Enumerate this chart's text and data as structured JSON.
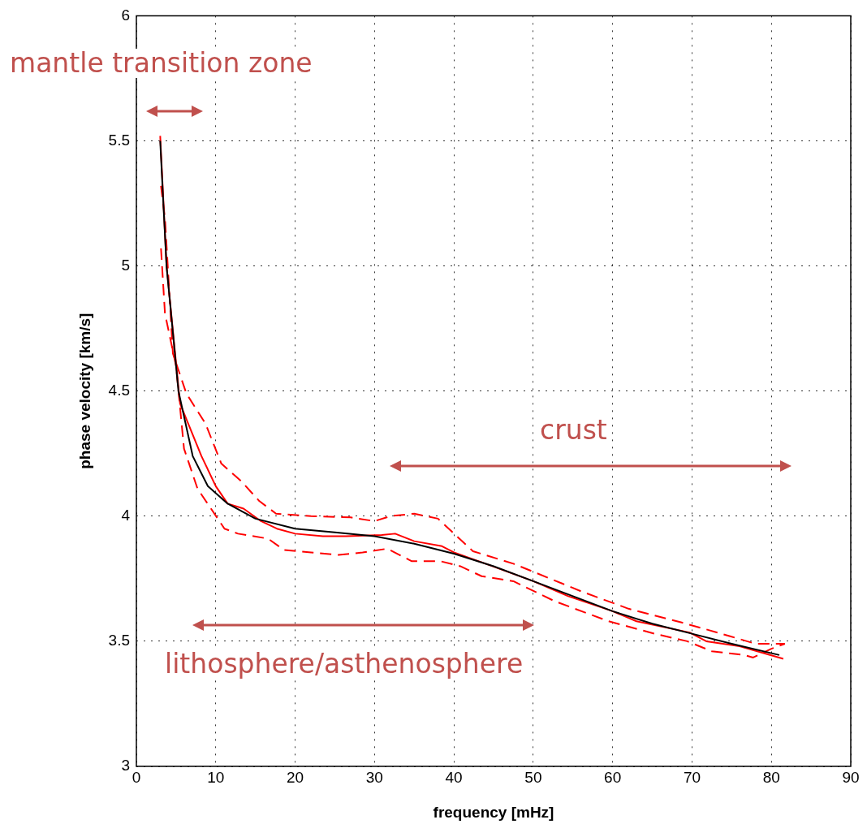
{
  "chart_data": {
    "type": "line",
    "xlabel": "frequency [mHz]",
    "ylabel": "phase velocity [km/s]",
    "xlim": [
      0,
      90
    ],
    "xticks": [
      0,
      10,
      20,
      30,
      40,
      50,
      60,
      70,
      80,
      90
    ],
    "ylim": [
      3,
      6
    ],
    "yticks": [
      3,
      3.5,
      4,
      4.5,
      5,
      5.5,
      6
    ],
    "grid": true,
    "legend": false,
    "marker": "none",
    "annotations": [
      "mantle transition zone",
      "crust",
      "lithosphere/asthenosphere"
    ],
    "series": [
      {
        "color": "#000000",
        "line_style": "solid",
        "x": [
          3,
          3.8,
          5.3,
          7.1,
          9,
          11.5,
          15,
          20,
          25,
          30,
          35,
          40,
          45,
          50,
          55,
          60,
          65,
          70,
          75,
          81
        ],
        "values": [
          5.5,
          5.0,
          4.5,
          4.24,
          4.12,
          4.05,
          3.99,
          3.95,
          3.935,
          3.92,
          3.89,
          3.85,
          3.8,
          3.74,
          3.68,
          3.62,
          3.57,
          3.53,
          3.49,
          3.445
        ]
      },
      {
        "color": "#ff0000",
        "line_style": "solid",
        "x": [
          3,
          3.8,
          5.5,
          8.2,
          10,
          11.5,
          13.5,
          15.7,
          17.7,
          20,
          23.5,
          26.4,
          30.9,
          32.6,
          35,
          38.5,
          40,
          44,
          50,
          54.4,
          60,
          63,
          69.7,
          71.8,
          76,
          81.5
        ],
        "values": [
          5.52,
          5.0,
          4.45,
          4.24,
          4.12,
          4.05,
          4.03,
          3.98,
          3.95,
          3.93,
          3.92,
          3.92,
          3.925,
          3.93,
          3.9,
          3.88,
          3.855,
          3.81,
          3.74,
          3.68,
          3.62,
          3.58,
          3.535,
          3.5,
          3.48,
          3.43
        ]
      },
      {
        "color": "#ff0000",
        "line_style": "dashed",
        "x": [
          3.1,
          3.6,
          4.6,
          6.3,
          8.7,
          10.7,
          13.2,
          15.5,
          17.6,
          22,
          27,
          30,
          32,
          35,
          38,
          42.4,
          47.5,
          53.7,
          56,
          62,
          68.7,
          71.5,
          74.8,
          78,
          81.7
        ],
        "values": [
          5.32,
          5.19,
          4.65,
          4.49,
          4.37,
          4.21,
          4.14,
          4.06,
          4.01,
          4.0,
          3.995,
          3.98,
          4.0,
          4.01,
          3.99,
          3.86,
          3.81,
          3.73,
          3.7,
          3.63,
          3.575,
          3.55,
          3.52,
          3.49,
          3.49
        ]
      },
      {
        "color": "#ff0000",
        "line_style": "dashed",
        "x": [
          3.1,
          3.6,
          5,
          6,
          7.7,
          9.4,
          11.1,
          12.8,
          16.6,
          18.6,
          22,
          25.5,
          28.5,
          31.6,
          34.7,
          38.3,
          40.8,
          43.5,
          47.5,
          52.7,
          59.5,
          65.3,
          69.4,
          72.5,
          76.6,
          77.7,
          80,
          81.7
        ],
        "values": [
          5.07,
          4.81,
          4.6,
          4.27,
          4.11,
          4.03,
          3.95,
          3.93,
          3.91,
          3.865,
          3.855,
          3.845,
          3.855,
          3.87,
          3.82,
          3.82,
          3.8,
          3.76,
          3.74,
          3.66,
          3.58,
          3.53,
          3.5,
          3.46,
          3.445,
          3.435,
          3.47,
          3.49
        ]
      }
    ]
  }
}
